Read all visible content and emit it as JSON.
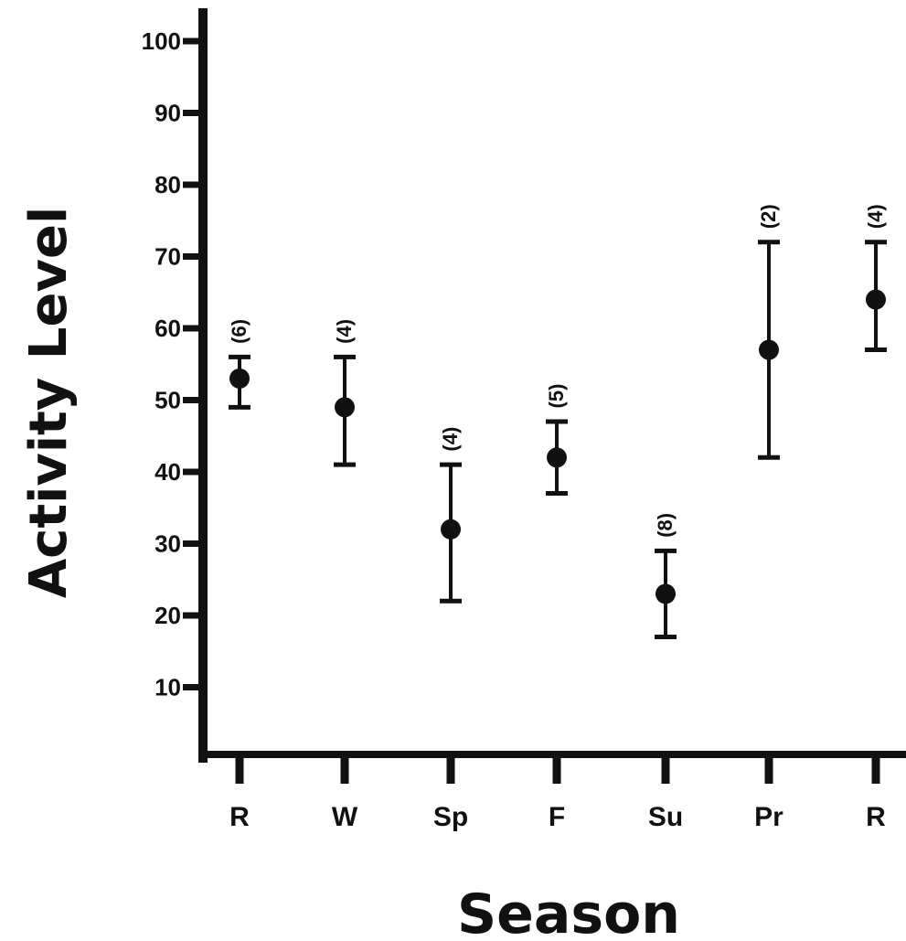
{
  "chart_data": {
    "type": "scatter",
    "title": "",
    "xlabel": "Season",
    "ylabel": "Activity Level",
    "categories": [
      "R",
      "W",
      "Sp",
      "F",
      "Su",
      "Pr",
      "R"
    ],
    "yticks": [
      "10",
      "20",
      "30",
      "40",
      "50",
      "60",
      "70",
      "80",
      "90",
      "100"
    ],
    "ylim": [
      0,
      100
    ],
    "grid": false,
    "series": [
      {
        "values": [
          53,
          49,
          32,
          42,
          23,
          57,
          64
        ],
        "error_low": [
          49,
          41,
          22,
          37,
          17,
          42,
          57
        ],
        "error_high": [
          56,
          56,
          41,
          47,
          29,
          72,
          72
        ],
        "n_labels": [
          "(6)",
          "(4)",
          "(4)",
          "(5)",
          "(8)",
          "(2)",
          "(4)"
        ]
      }
    ],
    "colors": {
      "ink": "#111111",
      "background": "#ffffff"
    }
  }
}
